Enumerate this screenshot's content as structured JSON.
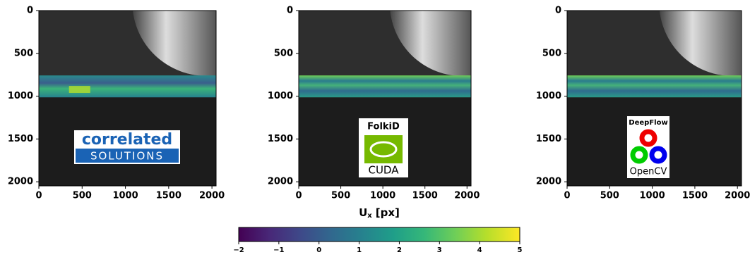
{
  "chart_data": [
    {
      "type": "image",
      "logo": [
        "correlated",
        "SOLUTIONS"
      ],
      "xlim": [
        0,
        2048
      ],
      "ylim": [
        0,
        2048
      ],
      "y_inverted": true,
      "xticks": [
        0,
        500,
        1000,
        1500,
        2000
      ],
      "yticks": [
        0,
        500,
        1000,
        1500,
        2000
      ]
    },
    {
      "type": "image",
      "logo": [
        "FolkiD",
        "CUDA"
      ],
      "xlim": [
        0,
        2048
      ],
      "ylim": [
        0,
        2048
      ],
      "y_inverted": true,
      "xticks": [
        0,
        500,
        1000,
        1500,
        2000
      ],
      "yticks": [
        0,
        500,
        1000,
        1500,
        2000
      ]
    },
    {
      "type": "image",
      "logo": [
        "DeepFlow",
        "OpenCV"
      ],
      "xlim": [
        0,
        2048
      ],
      "ylim": [
        0,
        2048
      ],
      "y_inverted": true,
      "xticks": [
        0,
        500,
        1000,
        1500,
        2000
      ],
      "yticks": [
        0,
        500,
        1000,
        1500,
        2000
      ]
    },
    {
      "type": "colorbar",
      "label": "U",
      "label_sub": "x",
      "label_unit": "[px]",
      "colormap": "viridis",
      "xlim": [
        -2,
        5
      ],
      "xticks": [
        {
          "value": -2,
          "label": "−2"
        },
        {
          "value": -1,
          "label": "−1"
        },
        0,
        1,
        2,
        3,
        4,
        5
      ]
    }
  ]
}
